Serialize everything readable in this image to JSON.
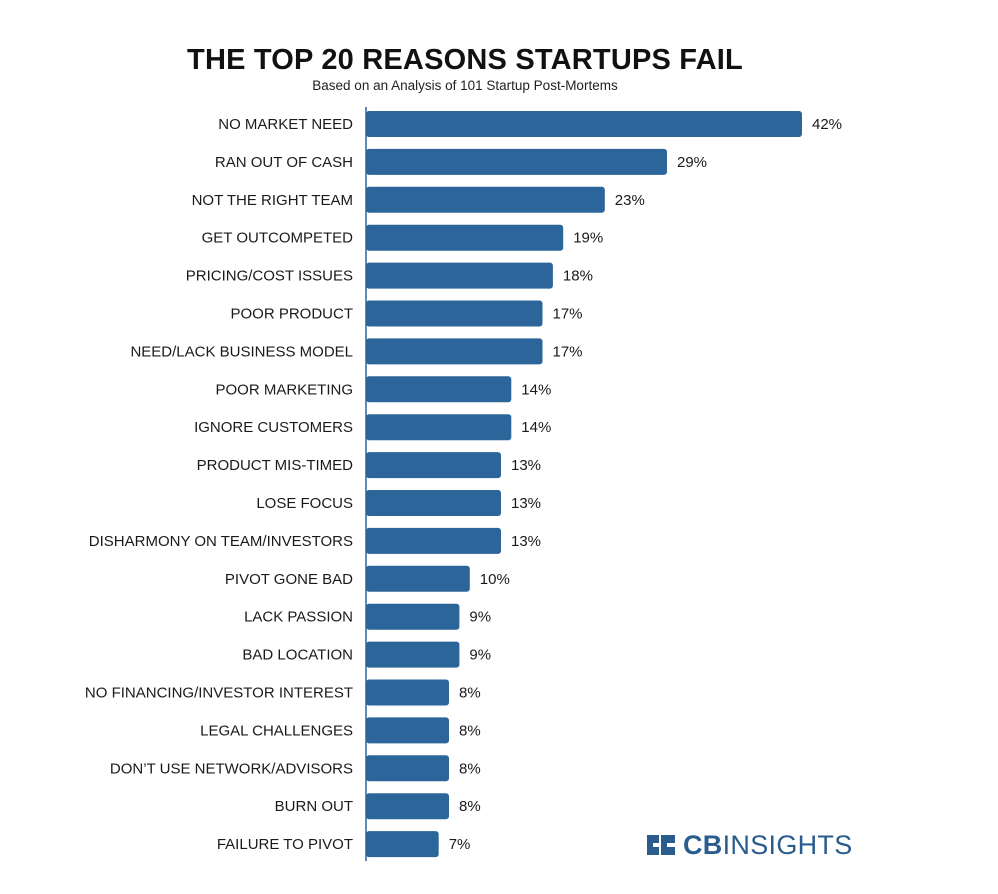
{
  "colors": {
    "bar": "#2b6599",
    "axis": "#2b6599",
    "logo": "#2a5c8e"
  },
  "logo": {
    "bold": "CB",
    "light": "INSIGHTS",
    "icon": "cb-insights-logo-icon"
  },
  "chart_data": {
    "type": "bar",
    "orientation": "horizontal",
    "title": "THE TOP 20 REASONS STARTUPS FAIL",
    "subtitle": "Based on an Analysis of 101 Startup Post-Mortems",
    "categories": [
      "NO MARKET NEED",
      "RAN OUT OF CASH",
      "NOT THE RIGHT TEAM",
      "GET OUTCOMPETED",
      "PRICING/COST ISSUES",
      "POOR PRODUCT",
      "NEED/LACK BUSINESS MODEL",
      "POOR MARKETING",
      "IGNORE CUSTOMERS",
      "PRODUCT MIS-TIMED",
      "LOSE FOCUS",
      "DISHARMONY ON TEAM/INVESTORS",
      "PIVOT GONE BAD",
      "LACK PASSION",
      "BAD LOCATION",
      "NO FINANCING/INVESTOR INTEREST",
      "LEGAL CHALLENGES",
      "DON’T USE NETWORK/ADVISORS",
      "BURN OUT",
      "FAILURE TO PIVOT"
    ],
    "values": [
      42,
      29,
      23,
      19,
      18,
      17,
      17,
      14,
      14,
      13,
      13,
      13,
      10,
      9,
      9,
      8,
      8,
      8,
      8,
      7
    ],
    "value_labels": [
      "42%",
      "29%",
      "23%",
      "19%",
      "18%",
      "17%",
      "17%",
      "14%",
      "14%",
      "13%",
      "13%",
      "13%",
      "10%",
      "9%",
      "9%",
      "8%",
      "8%",
      "8%",
      "8%",
      "7%"
    ],
    "unit": "%",
    "xlim": [
      0,
      42
    ],
    "grid": false,
    "legend": "none"
  }
}
